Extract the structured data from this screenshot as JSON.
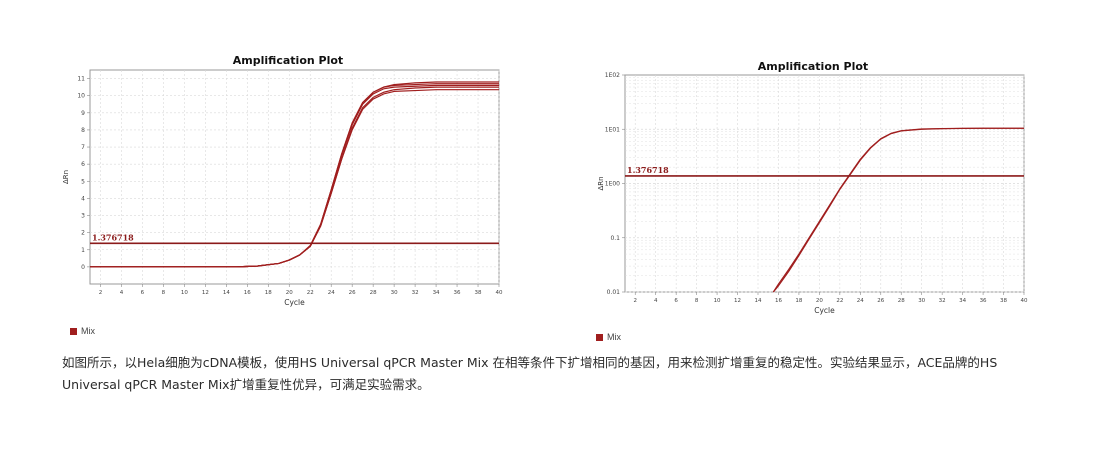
{
  "charts": {
    "left": {
      "title": "Amplification Plot",
      "xlabel": "Cycle",
      "ylabel": "ΔRn",
      "threshold_label": "1.376718",
      "legend_label": "Mix"
    },
    "right": {
      "title": "Amplification Plot",
      "xlabel": "Cycle",
      "ylabel": "ΔRn",
      "threshold_label": "1.376718",
      "legend_label": "Mix"
    }
  },
  "caption": "如图所示，以Hela细胞为cDNA模板，使用HS Universal qPCR Master Mix 在相等条件下扩增相同的基因，用来检测扩增重复的稳定性。实验结果显示，ACE品牌的HS Universal qPCR Master Mix扩增重复性优异，可满足实验需求。",
  "colors": {
    "curve": "#a01e1e",
    "threshold": "#8b1a1a",
    "grid": "#d9d9d9"
  },
  "chart_data": [
    {
      "type": "line",
      "title": "Amplification Plot",
      "xlabel": "Cycle",
      "ylabel": "ΔRn",
      "x_scale": "linear",
      "y_scale": "linear",
      "xlim": [
        1,
        40
      ],
      "ylim": [
        -1,
        11.5
      ],
      "xticks": [
        "2",
        "4",
        "6",
        "8",
        "10",
        "12",
        "14",
        "16",
        "18",
        "20",
        "22",
        "24",
        "26",
        "28",
        "30",
        "32",
        "34",
        "36",
        "38",
        "40"
      ],
      "yticks": [
        "0",
        "1",
        "2",
        "3",
        "4",
        "5",
        "6",
        "7",
        "8",
        "9",
        "10",
        "11"
      ],
      "threshold": 1.376718,
      "grid": true,
      "legend": [
        "Mix"
      ],
      "x": [
        1,
        5,
        10,
        15,
        17,
        19,
        20,
        21,
        22,
        23,
        24,
        25,
        26,
        27,
        28,
        29,
        30,
        32,
        34,
        36,
        38,
        40
      ],
      "series": [
        {
          "values": [
            0,
            0,
            0,
            0,
            0.05,
            0.2,
            0.4,
            0.7,
            1.2,
            2.4,
            4.3,
            6.3,
            8.1,
            9.3,
            9.9,
            10.2,
            10.35,
            10.45,
            10.5,
            10.5,
            10.5,
            10.5
          ]
        },
        {
          "values": [
            0,
            0,
            0,
            0,
            0.05,
            0.2,
            0.4,
            0.7,
            1.2,
            2.5,
            4.5,
            6.6,
            8.4,
            9.6,
            10.2,
            10.5,
            10.65,
            10.75,
            10.8,
            10.8,
            10.8,
            10.8
          ]
        },
        {
          "values": [
            0,
            0,
            0,
            0,
            0.05,
            0.2,
            0.4,
            0.7,
            1.2,
            2.4,
            4.3,
            6.3,
            8.0,
            9.2,
            9.8,
            10.1,
            10.25,
            10.3,
            10.35,
            10.35,
            10.35,
            10.35
          ]
        },
        {
          "values": [
            0,
            0,
            0,
            0,
            0.05,
            0.2,
            0.4,
            0.7,
            1.25,
            2.5,
            4.5,
            6.6,
            8.4,
            9.6,
            10.2,
            10.5,
            10.6,
            10.65,
            10.7,
            10.7,
            10.7,
            10.7
          ]
        },
        {
          "values": [
            0,
            0,
            0,
            0,
            0.05,
            0.2,
            0.4,
            0.7,
            1.2,
            2.45,
            4.4,
            6.5,
            8.3,
            9.5,
            10.1,
            10.4,
            10.5,
            10.55,
            10.6,
            10.6,
            10.6,
            10.6
          ]
        }
      ]
    },
    {
      "type": "line",
      "title": "Amplification Plot",
      "xlabel": "Cycle",
      "ylabel": "ΔRn",
      "x_scale": "linear",
      "y_scale": "log",
      "xlim": [
        1,
        40
      ],
      "ylim": [
        0.01,
        100
      ],
      "xticks": [
        "2",
        "4",
        "6",
        "8",
        "10",
        "12",
        "14",
        "16",
        "18",
        "20",
        "22",
        "24",
        "26",
        "28",
        "30",
        "32",
        "34",
        "36",
        "38",
        "40"
      ],
      "yticks": [
        "0.01",
        "0.1",
        "1E00",
        "1E01",
        "1E02"
      ],
      "threshold": 1.376718,
      "grid": true,
      "legend": [
        "Mix"
      ],
      "x": [
        15.5,
        16,
        17,
        18,
        19,
        20,
        21,
        22,
        23,
        24,
        25,
        26,
        27,
        28,
        30,
        32,
        34,
        36,
        38,
        40
      ],
      "series": [
        {
          "values": [
            0.01,
            0.014,
            0.026,
            0.05,
            0.1,
            0.2,
            0.4,
            0.8,
            1.5,
            2.8,
            4.6,
            6.7,
            8.4,
            9.4,
            10.1,
            10.3,
            10.4,
            10.45,
            10.45,
            10.45
          ]
        },
        {
          "values": [
            0.01,
            0.013,
            0.024,
            0.047,
            0.095,
            0.19,
            0.38,
            0.78,
            1.45,
            2.7,
            4.5,
            6.6,
            8.3,
            9.3,
            10.0,
            10.25,
            10.35,
            10.4,
            10.4,
            10.4
          ]
        }
      ]
    }
  ]
}
